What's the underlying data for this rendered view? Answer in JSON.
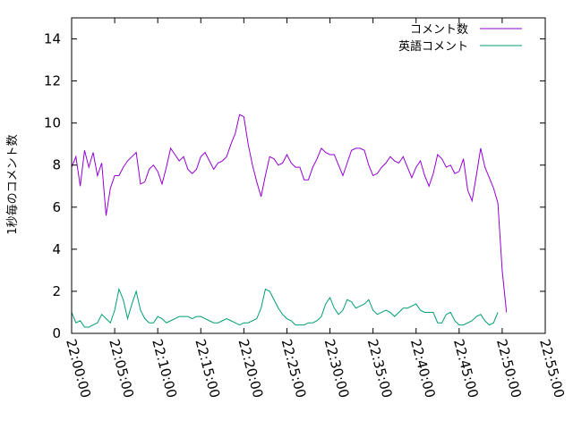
{
  "chart_data": {
    "type": "line",
    "ylabel": "1秒毎のコメント数",
    "xlabel": "",
    "x_ticks": [
      "22:00:00",
      "22:05:00",
      "22:10:00",
      "22:15:00",
      "22:20:00",
      "22:25:00",
      "22:30:00",
      "22:35:00",
      "22:40:00",
      "22:45:00",
      "22:50:00",
      "22:55:00"
    ],
    "y_ticks": [
      "0",
      "2",
      "4",
      "6",
      "8",
      "10",
      "12",
      "14"
    ],
    "xlim": [
      "22:00:00",
      "22:55:00"
    ],
    "ylim": [
      0,
      15
    ],
    "legend_position": "top-right",
    "grid": false,
    "series": [
      {
        "name": "コメント数",
        "color": "#9400d3",
        "points": [
          [
            "22:00:00",
            7.9
          ],
          [
            "22:00:30",
            8.4
          ],
          [
            "22:01:00",
            7.0
          ],
          [
            "22:01:30",
            8.7
          ],
          [
            "22:02:00",
            7.9
          ],
          [
            "22:02:30",
            8.6
          ],
          [
            "22:03:00",
            7.5
          ],
          [
            "22:03:30",
            8.1
          ],
          [
            "22:04:00",
            5.6
          ],
          [
            "22:04:30",
            6.9
          ],
          [
            "22:05:00",
            7.5
          ],
          [
            "22:05:30",
            7.5
          ],
          [
            "22:06:00",
            7.9
          ],
          [
            "22:06:30",
            8.2
          ],
          [
            "22:07:00",
            8.4
          ],
          [
            "22:07:30",
            8.6
          ],
          [
            "22:08:00",
            7.1
          ],
          [
            "22:08:30",
            7.2
          ],
          [
            "22:09:00",
            7.8
          ],
          [
            "22:09:30",
            8.0
          ],
          [
            "22:10:00",
            7.7
          ],
          [
            "22:10:30",
            7.1
          ],
          [
            "22:11:00",
            7.9
          ],
          [
            "22:11:30",
            8.8
          ],
          [
            "22:12:00",
            8.5
          ],
          [
            "22:12:30",
            8.2
          ],
          [
            "22:13:00",
            8.4
          ],
          [
            "22:13:30",
            7.8
          ],
          [
            "22:14:00",
            7.6
          ],
          [
            "22:14:30",
            7.8
          ],
          [
            "22:15:00",
            8.4
          ],
          [
            "22:15:30",
            8.6
          ],
          [
            "22:16:00",
            8.2
          ],
          [
            "22:16:30",
            7.8
          ],
          [
            "22:17:00",
            8.1
          ],
          [
            "22:17:30",
            8.2
          ],
          [
            "22:18:00",
            8.4
          ],
          [
            "22:18:30",
            9.0
          ],
          [
            "22:19:00",
            9.5
          ],
          [
            "22:19:30",
            10.4
          ],
          [
            "22:20:00",
            10.3
          ],
          [
            "22:20:30",
            9.0
          ],
          [
            "22:21:00",
            8.0
          ],
          [
            "22:21:30",
            7.2
          ],
          [
            "22:22:00",
            6.5
          ],
          [
            "22:22:30",
            7.5
          ],
          [
            "22:23:00",
            8.4
          ],
          [
            "22:23:30",
            8.3
          ],
          [
            "22:24:00",
            8.0
          ],
          [
            "22:24:30",
            8.1
          ],
          [
            "22:25:00",
            8.5
          ],
          [
            "22:25:30",
            8.1
          ],
          [
            "22:26:00",
            7.9
          ],
          [
            "22:26:30",
            7.9
          ],
          [
            "22:27:00",
            7.3
          ],
          [
            "22:27:30",
            7.3
          ],
          [
            "22:28:00",
            7.9
          ],
          [
            "22:28:30",
            8.3
          ],
          [
            "22:29:00",
            8.8
          ],
          [
            "22:29:30",
            8.6
          ],
          [
            "22:30:00",
            8.5
          ],
          [
            "22:30:30",
            8.5
          ],
          [
            "22:31:00",
            8.0
          ],
          [
            "22:31:30",
            7.5
          ],
          [
            "22:32:00",
            8.1
          ],
          [
            "22:32:30",
            8.7
          ],
          [
            "22:33:00",
            8.8
          ],
          [
            "22:33:30",
            8.8
          ],
          [
            "22:34:00",
            8.7
          ],
          [
            "22:34:30",
            8.0
          ],
          [
            "22:35:00",
            7.5
          ],
          [
            "22:35:30",
            7.6
          ],
          [
            "22:36:00",
            7.9
          ],
          [
            "22:36:30",
            8.1
          ],
          [
            "22:37:00",
            8.4
          ],
          [
            "22:37:30",
            8.2
          ],
          [
            "22:38:00",
            8.1
          ],
          [
            "22:38:30",
            8.4
          ],
          [
            "22:39:00",
            7.9
          ],
          [
            "22:39:30",
            7.4
          ],
          [
            "22:40:00",
            7.9
          ],
          [
            "22:40:30",
            8.2
          ],
          [
            "22:41:00",
            7.5
          ],
          [
            "22:41:30",
            7.0
          ],
          [
            "22:42:00",
            7.6
          ],
          [
            "22:42:30",
            8.5
          ],
          [
            "22:43:00",
            8.3
          ],
          [
            "22:43:30",
            7.9
          ],
          [
            "22:44:00",
            8.0
          ],
          [
            "22:44:30",
            7.6
          ],
          [
            "22:45:00",
            7.7
          ],
          [
            "22:45:30",
            8.3
          ],
          [
            "22:46:00",
            6.8
          ],
          [
            "22:46:30",
            6.3
          ],
          [
            "22:47:00",
            7.5
          ],
          [
            "22:47:30",
            8.8
          ],
          [
            "22:48:00",
            7.9
          ],
          [
            "22:48:30",
            7.4
          ],
          [
            "22:49:00",
            6.9
          ],
          [
            "22:49:30",
            6.2
          ],
          [
            "22:50:00",
            3.0
          ],
          [
            "22:50:30",
            1.0
          ]
        ]
      },
      {
        "name": "英語コメント",
        "color": "#009e73",
        "points": [
          [
            "22:00:00",
            1.0
          ],
          [
            "22:00:30",
            0.5
          ],
          [
            "22:01:00",
            0.6
          ],
          [
            "22:01:30",
            0.3
          ],
          [
            "22:02:00",
            0.3
          ],
          [
            "22:02:30",
            0.4
          ],
          [
            "22:03:00",
            0.5
          ],
          [
            "22:03:30",
            0.9
          ],
          [
            "22:04:00",
            0.7
          ],
          [
            "22:04:30",
            0.5
          ],
          [
            "22:05:00",
            1.1
          ],
          [
            "22:05:30",
            2.1
          ],
          [
            "22:06:00",
            1.6
          ],
          [
            "22:06:30",
            0.7
          ],
          [
            "22:07:00",
            1.4
          ],
          [
            "22:07:30",
            2.0
          ],
          [
            "22:08:00",
            1.1
          ],
          [
            "22:08:30",
            0.7
          ],
          [
            "22:09:00",
            0.5
          ],
          [
            "22:09:30",
            0.5
          ],
          [
            "22:10:00",
            0.8
          ],
          [
            "22:10:30",
            0.7
          ],
          [
            "22:11:00",
            0.5
          ],
          [
            "22:11:30",
            0.6
          ],
          [
            "22:12:00",
            0.7
          ],
          [
            "22:12:30",
            0.8
          ],
          [
            "22:13:00",
            0.8
          ],
          [
            "22:13:30",
            0.8
          ],
          [
            "22:14:00",
            0.7
          ],
          [
            "22:14:30",
            0.8
          ],
          [
            "22:15:00",
            0.8
          ],
          [
            "22:15:30",
            0.7
          ],
          [
            "22:16:00",
            0.6
          ],
          [
            "22:16:30",
            0.5
          ],
          [
            "22:17:00",
            0.5
          ],
          [
            "22:17:30",
            0.6
          ],
          [
            "22:18:00",
            0.7
          ],
          [
            "22:18:30",
            0.6
          ],
          [
            "22:19:00",
            0.5
          ],
          [
            "22:19:30",
            0.4
          ],
          [
            "22:20:00",
            0.5
          ],
          [
            "22:20:30",
            0.5
          ],
          [
            "22:21:00",
            0.6
          ],
          [
            "22:21:30",
            0.7
          ],
          [
            "22:22:00",
            1.2
          ],
          [
            "22:22:30",
            2.1
          ],
          [
            "22:23:00",
            2.0
          ],
          [
            "22:23:30",
            1.6
          ],
          [
            "22:24:00",
            1.2
          ],
          [
            "22:24:30",
            0.9
          ],
          [
            "22:25:00",
            0.7
          ],
          [
            "22:25:30",
            0.6
          ],
          [
            "22:26:00",
            0.4
          ],
          [
            "22:26:30",
            0.4
          ],
          [
            "22:27:00",
            0.4
          ],
          [
            "22:27:30",
            0.5
          ],
          [
            "22:28:00",
            0.5
          ],
          [
            "22:28:30",
            0.6
          ],
          [
            "22:29:00",
            0.8
          ],
          [
            "22:29:30",
            1.4
          ],
          [
            "22:30:00",
            1.7
          ],
          [
            "22:30:30",
            1.2
          ],
          [
            "22:31:00",
            0.9
          ],
          [
            "22:31:30",
            1.1
          ],
          [
            "22:32:00",
            1.6
          ],
          [
            "22:32:30",
            1.5
          ],
          [
            "22:33:00",
            1.2
          ],
          [
            "22:33:30",
            1.3
          ],
          [
            "22:34:00",
            1.4
          ],
          [
            "22:34:30",
            1.6
          ],
          [
            "22:35:00",
            1.1
          ],
          [
            "22:35:30",
            0.9
          ],
          [
            "22:36:00",
            1.0
          ],
          [
            "22:36:30",
            1.1
          ],
          [
            "22:37:00",
            1.0
          ],
          [
            "22:37:30",
            0.8
          ],
          [
            "22:38:00",
            1.0
          ],
          [
            "22:38:30",
            1.2
          ],
          [
            "22:39:00",
            1.2
          ],
          [
            "22:39:30",
            1.3
          ],
          [
            "22:40:00",
            1.4
          ],
          [
            "22:40:30",
            1.1
          ],
          [
            "22:41:00",
            1.0
          ],
          [
            "22:41:30",
            1.0
          ],
          [
            "22:42:00",
            1.0
          ],
          [
            "22:42:30",
            0.5
          ],
          [
            "22:43:00",
            0.5
          ],
          [
            "22:43:30",
            0.9
          ],
          [
            "22:44:00",
            1.0
          ],
          [
            "22:44:30",
            0.6
          ],
          [
            "22:45:00",
            0.4
          ],
          [
            "22:45:30",
            0.4
          ],
          [
            "22:46:00",
            0.5
          ],
          [
            "22:46:30",
            0.6
          ],
          [
            "22:47:00",
            0.8
          ],
          [
            "22:47:30",
            0.9
          ],
          [
            "22:48:00",
            0.6
          ],
          [
            "22:48:30",
            0.4
          ],
          [
            "22:49:00",
            0.5
          ],
          [
            "22:49:30",
            1.0
          ]
        ]
      }
    ]
  }
}
